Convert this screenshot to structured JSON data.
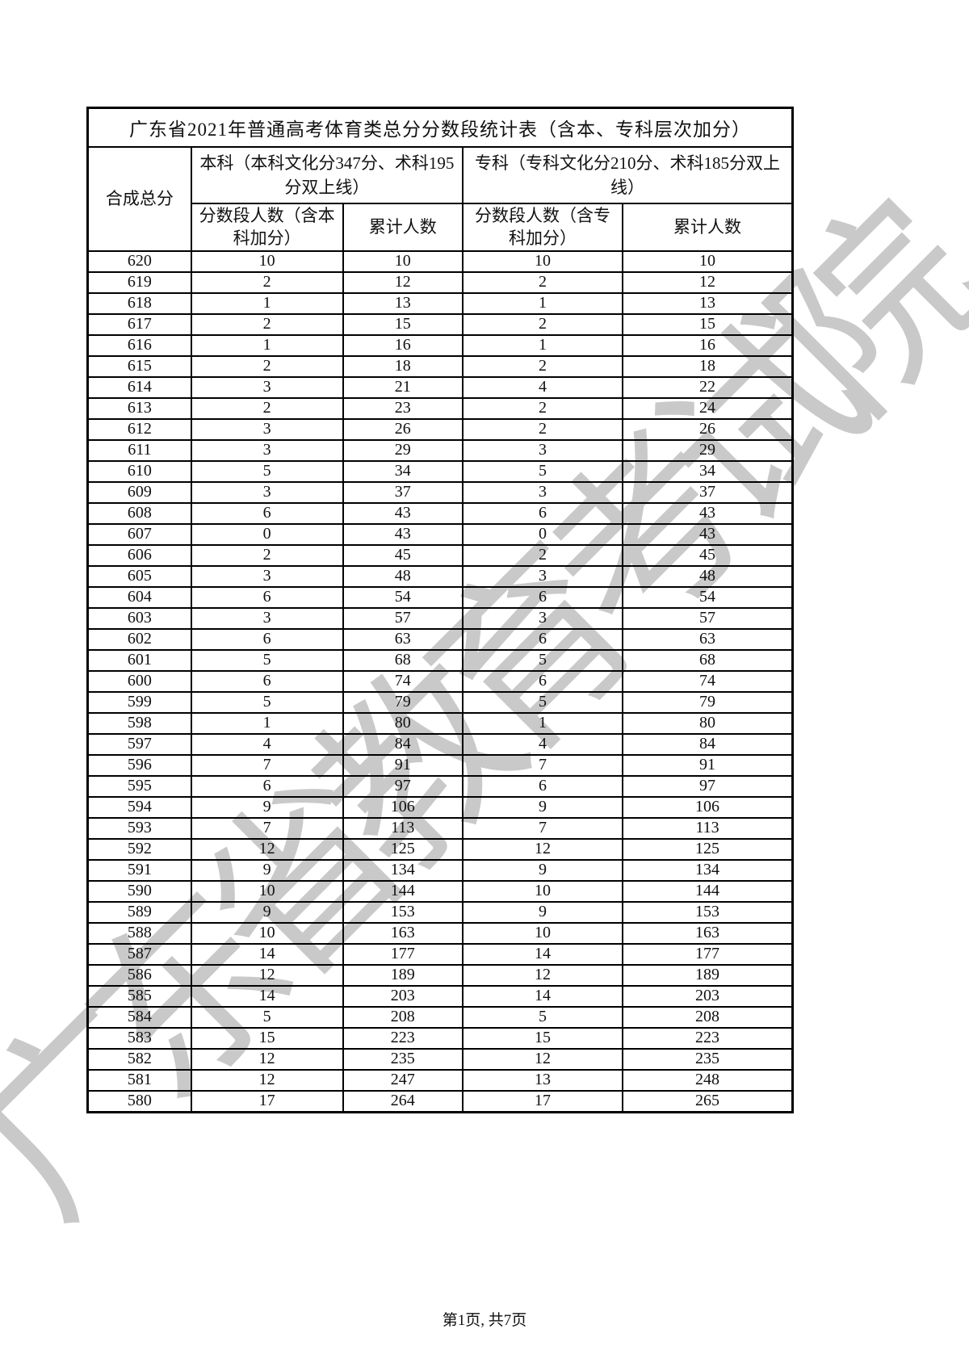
{
  "title": "广东省2021年普通高考体育类总分分数段统计表（含本、专科层次加分）",
  "watermark": "广东省教育考试院",
  "footer": {
    "page_info": "第1页, 共7页"
  },
  "table": {
    "col_score": "合成总分",
    "group_benke": "本科（本科文化分347分、术科195分双上线）",
    "group_zhuanke": "专科（专科文化分210分、术科185分双上线）",
    "col_benke_count": "分数段人数（含本科加分）",
    "col_benke_cum": "累计人数",
    "col_zhuanke_count": "分数段人数（含专科加分）",
    "col_zhuanke_cum": "累计人数",
    "rows": [
      [
        620,
        10,
        10,
        10,
        10
      ],
      [
        619,
        2,
        12,
        2,
        12
      ],
      [
        618,
        1,
        13,
        1,
        13
      ],
      [
        617,
        2,
        15,
        2,
        15
      ],
      [
        616,
        1,
        16,
        1,
        16
      ],
      [
        615,
        2,
        18,
        2,
        18
      ],
      [
        614,
        3,
        21,
        4,
        22
      ],
      [
        613,
        2,
        23,
        2,
        24
      ],
      [
        612,
        3,
        26,
        2,
        26
      ],
      [
        611,
        3,
        29,
        3,
        29
      ],
      [
        610,
        5,
        34,
        5,
        34
      ],
      [
        609,
        3,
        37,
        3,
        37
      ],
      [
        608,
        6,
        43,
        6,
        43
      ],
      [
        607,
        0,
        43,
        0,
        43
      ],
      [
        606,
        2,
        45,
        2,
        45
      ],
      [
        605,
        3,
        48,
        3,
        48
      ],
      [
        604,
        6,
        54,
        6,
        54
      ],
      [
        603,
        3,
        57,
        3,
        57
      ],
      [
        602,
        6,
        63,
        6,
        63
      ],
      [
        601,
        5,
        68,
        5,
        68
      ],
      [
        600,
        6,
        74,
        6,
        74
      ],
      [
        599,
        5,
        79,
        5,
        79
      ],
      [
        598,
        1,
        80,
        1,
        80
      ],
      [
        597,
        4,
        84,
        4,
        84
      ],
      [
        596,
        7,
        91,
        7,
        91
      ],
      [
        595,
        6,
        97,
        6,
        97
      ],
      [
        594,
        9,
        106,
        9,
        106
      ],
      [
        593,
        7,
        113,
        7,
        113
      ],
      [
        592,
        12,
        125,
        12,
        125
      ],
      [
        591,
        9,
        134,
        9,
        134
      ],
      [
        590,
        10,
        144,
        10,
        144
      ],
      [
        589,
        9,
        153,
        9,
        153
      ],
      [
        588,
        10,
        163,
        10,
        163
      ],
      [
        587,
        14,
        177,
        14,
        177
      ],
      [
        586,
        12,
        189,
        12,
        189
      ],
      [
        585,
        14,
        203,
        14,
        203
      ],
      [
        584,
        5,
        208,
        5,
        208
      ],
      [
        583,
        15,
        223,
        15,
        223
      ],
      [
        582,
        12,
        235,
        12,
        235
      ],
      [
        581,
        12,
        247,
        13,
        248
      ],
      [
        580,
        17,
        264,
        17,
        265
      ]
    ]
  }
}
